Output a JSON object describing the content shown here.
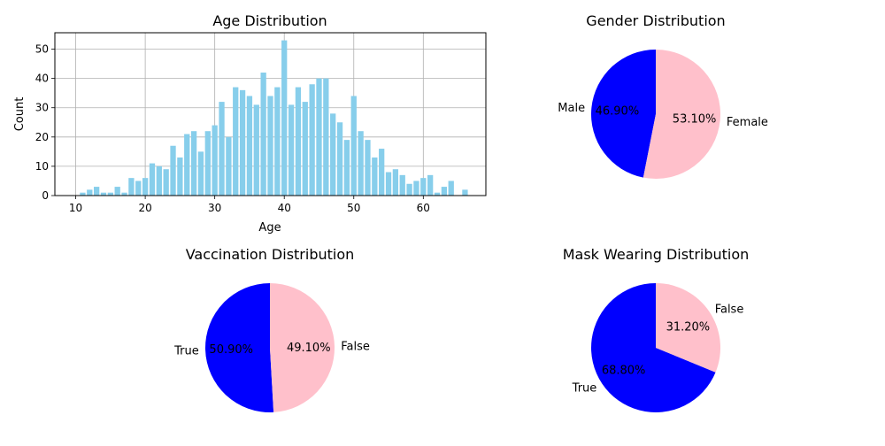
{
  "chart_data": [
    {
      "type": "bar",
      "title": "Age Distribution",
      "xlabel": "Age",
      "ylabel": "Count",
      "xlim": [
        7,
        69
      ],
      "ylim": [
        0,
        55.6
      ],
      "xticks": [
        10,
        20,
        30,
        40,
        50,
        60
      ],
      "yticks": [
        0,
        10,
        20,
        30,
        40,
        50
      ],
      "grid": true,
      "bar_color": "#87CEEB",
      "x": [
        11,
        12,
        13,
        14,
        15,
        16,
        17,
        18,
        19,
        20,
        21,
        22,
        23,
        24,
        25,
        26,
        27,
        28,
        29,
        30,
        31,
        32,
        33,
        34,
        35,
        36,
        37,
        38,
        39,
        40,
        41,
        42,
        43,
        44,
        45,
        46,
        47,
        48,
        49,
        50,
        51,
        52,
        53,
        54,
        55,
        56,
        57,
        58,
        59,
        60,
        61,
        62,
        63,
        64,
        66
      ],
      "values": [
        1,
        2,
        3,
        1,
        1,
        3,
        1,
        6,
        5,
        6,
        11,
        10,
        9,
        17,
        13,
        21,
        22,
        15,
        22,
        24,
        32,
        20,
        37,
        36,
        34,
        31,
        42,
        34,
        37,
        53,
        31,
        37,
        32,
        38,
        40,
        40,
        28,
        25,
        19,
        34,
        22,
        19,
        13,
        16,
        8,
        9,
        7,
        4,
        5,
        6,
        7,
        1,
        3,
        5,
        2
      ]
    },
    {
      "type": "pie",
      "title": "Gender Distribution",
      "labels": [
        "Male",
        "Female"
      ],
      "values": [
        46.9,
        53.1
      ],
      "pct_labels": [
        "46.90%",
        "53.10%"
      ],
      "colors": [
        "#0000FF",
        "#FFC0CB"
      ]
    },
    {
      "type": "pie",
      "title": "Vaccination Distribution",
      "labels": [
        "True",
        "False"
      ],
      "values": [
        50.9,
        49.1
      ],
      "pct_labels": [
        "50.90%",
        "49.10%"
      ],
      "colors": [
        "#0000FF",
        "#FFC0CB"
      ]
    },
    {
      "type": "pie",
      "title": "Mask Wearing Distribution",
      "labels": [
        "True",
        "False"
      ],
      "values": [
        68.8,
        31.2
      ],
      "pct_labels": [
        "68.80%",
        "31.20%"
      ],
      "colors": [
        "#0000FF",
        "#FFC0CB"
      ]
    }
  ]
}
